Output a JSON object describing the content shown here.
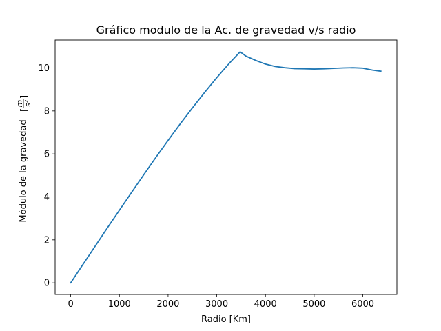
{
  "chart_data": {
    "type": "line",
    "title": "Gráfico modulo de la Ac. de gravedad v/s radio",
    "xlabel": "Radio [Km]",
    "ylabel": "Módulo de la gravedad",
    "ylabel_unit_num": "m",
    "ylabel_unit_den": "s²",
    "xlim": [
      -320,
      6700
    ],
    "ylim": [
      -0.54,
      11.3
    ],
    "xticks": [
      0,
      1000,
      2000,
      3000,
      4000,
      5000,
      6000
    ],
    "yticks": [
      0,
      2,
      4,
      6,
      8,
      10
    ],
    "grid": false,
    "series": [
      {
        "color": "#1f77b4",
        "x": [
          0,
          250,
          500,
          750,
          1000,
          1250,
          1500,
          1750,
          2000,
          2250,
          2500,
          2750,
          3000,
          3250,
          3480,
          3600,
          3800,
          4000,
          4200,
          4400,
          4600,
          4800,
          5000,
          5200,
          5400,
          5600,
          5800,
          6000,
          6200,
          6371
        ],
        "y": [
          0,
          0.85,
          1.7,
          2.55,
          3.38,
          4.21,
          5.03,
          5.84,
          6.63,
          7.4,
          8.14,
          8.86,
          9.55,
          10.2,
          10.75,
          10.55,
          10.35,
          10.18,
          10.07,
          10.01,
          9.97,
          9.96,
          9.95,
          9.96,
          9.98,
          10.0,
          10.01,
          9.99,
          9.9,
          9.85
        ]
      }
    ]
  }
}
